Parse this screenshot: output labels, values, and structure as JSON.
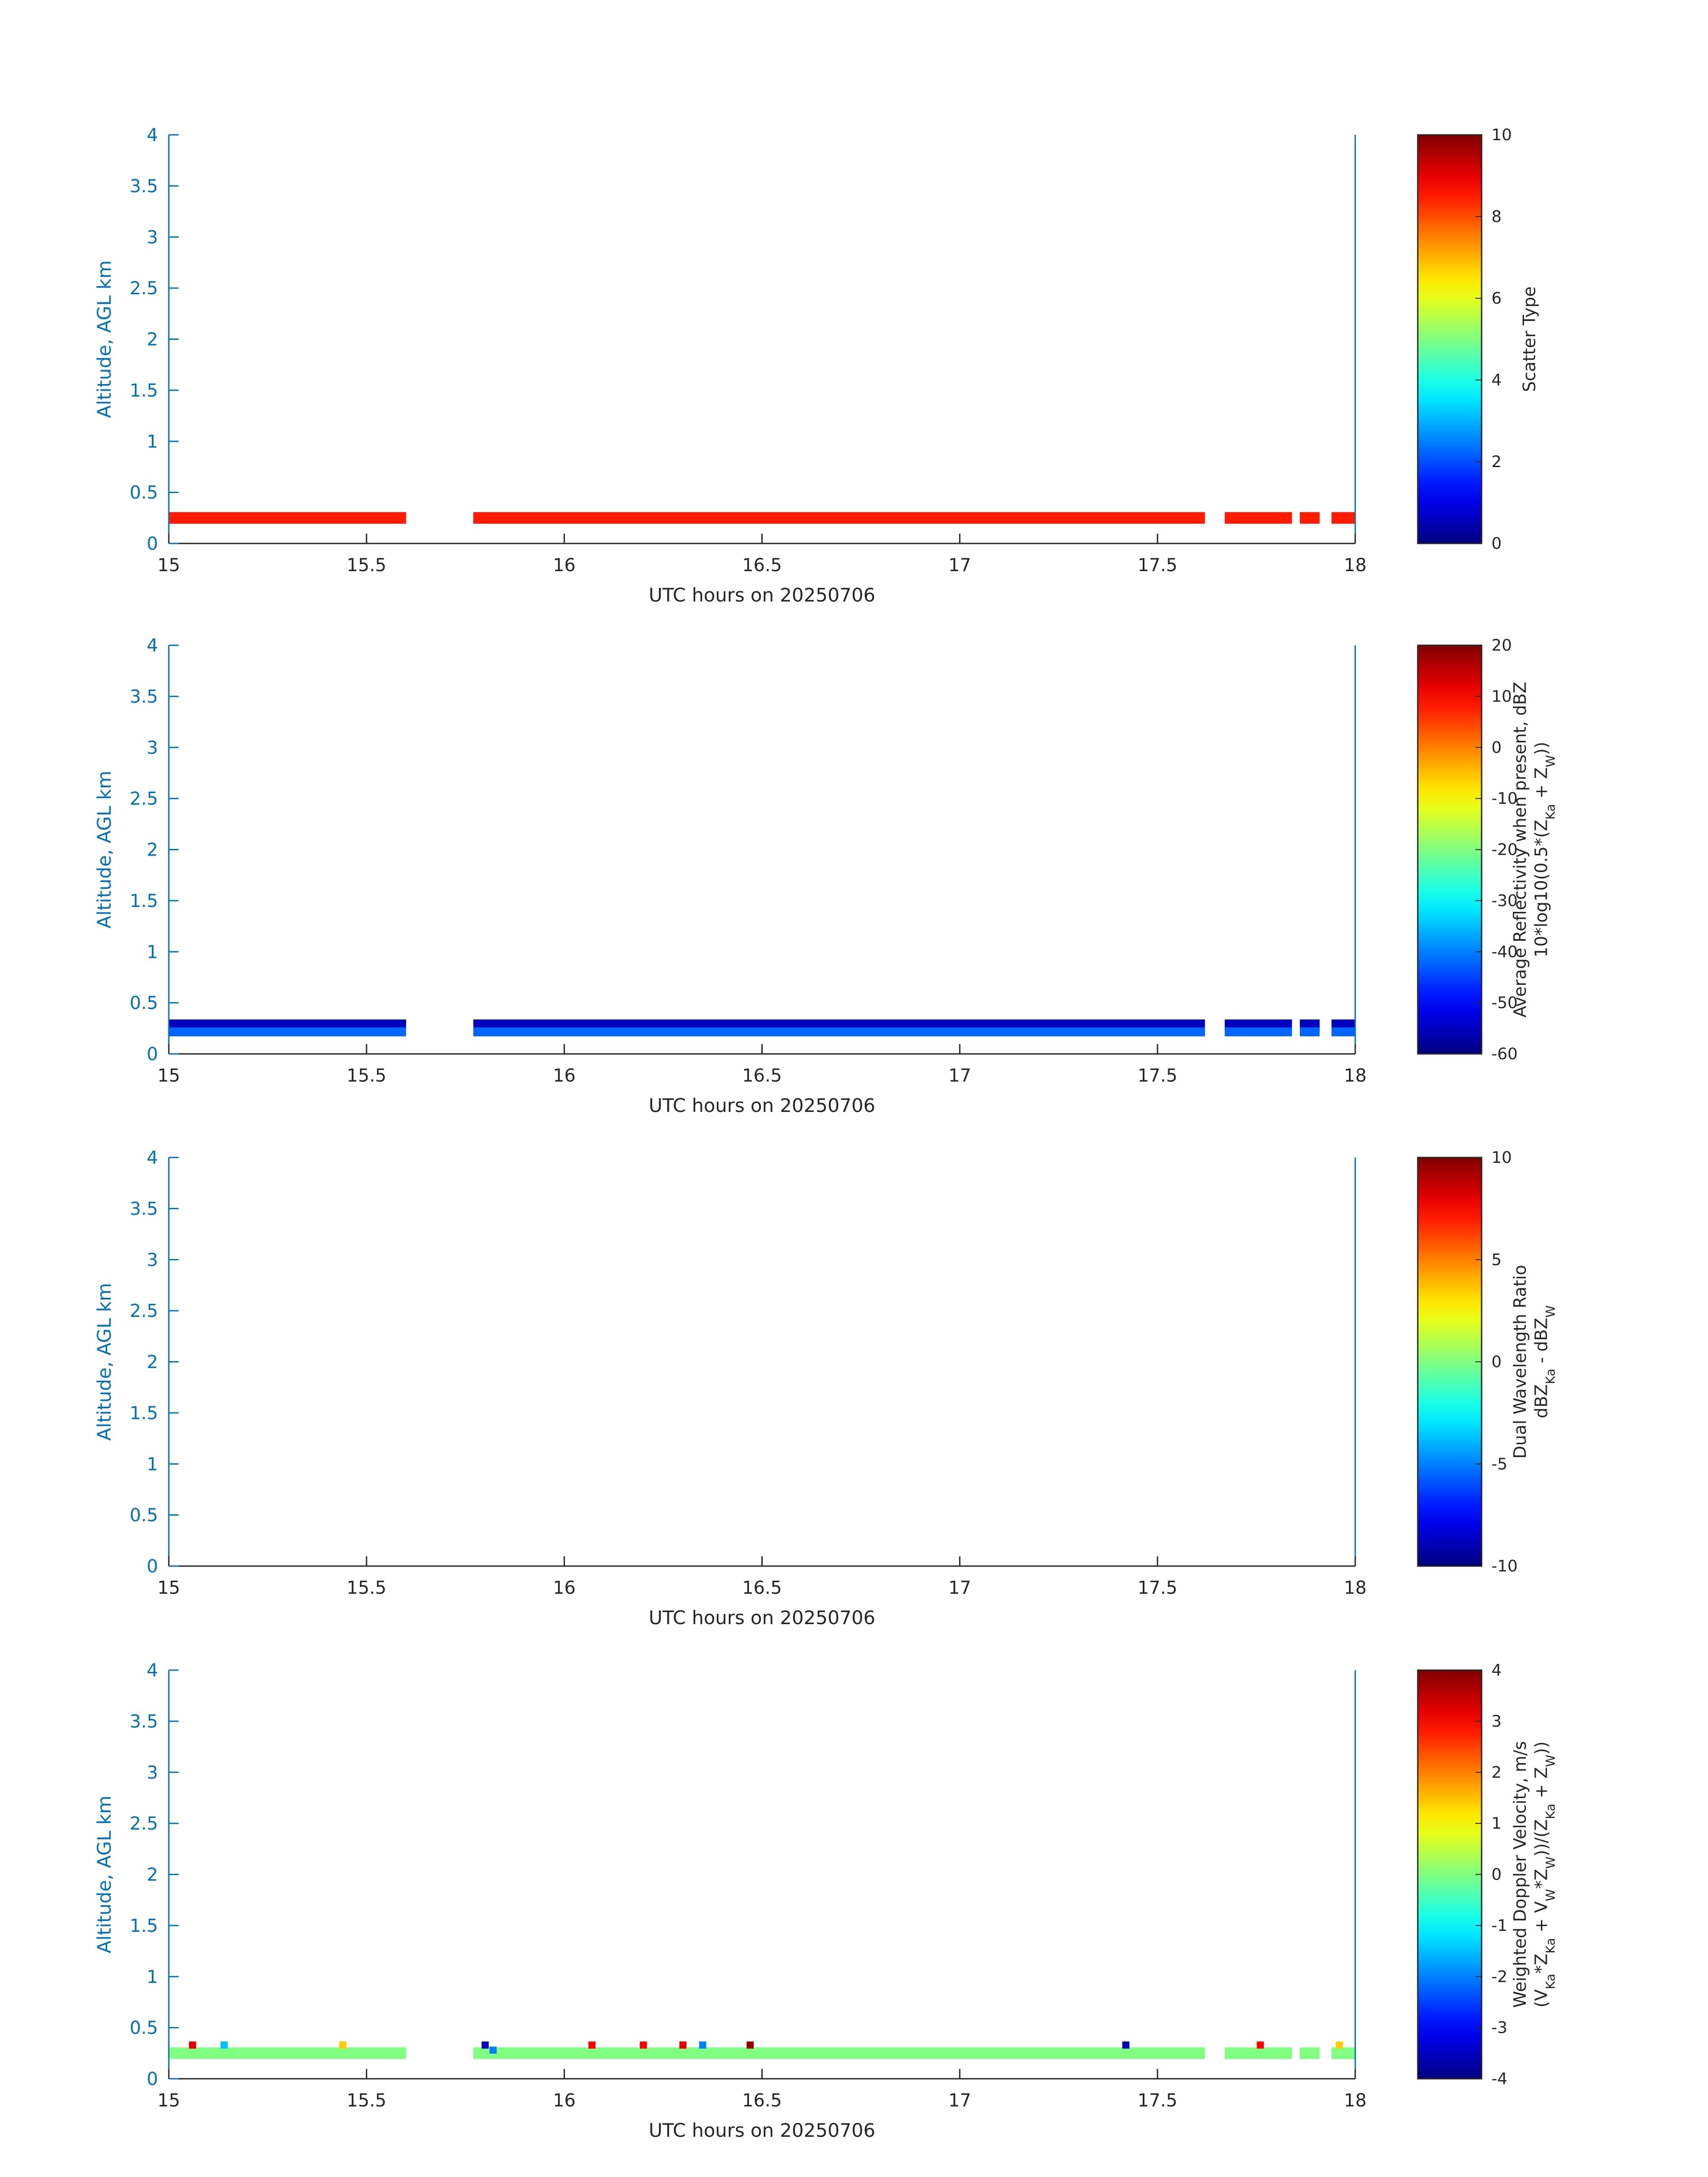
{
  "chart_data": [
    {
      "type": "heatmap",
      "xlabel": "UTC hours on 20250706",
      "ylabel": "Altitude, AGL km",
      "xlim": [
        15,
        18
      ],
      "ylim": [
        0,
        4
      ],
      "xticks": [
        "15",
        "15.5",
        "16",
        "16.5",
        "17",
        "17.5",
        "18"
      ],
      "yticks": [
        "0",
        "0.5",
        "1",
        "1.5",
        "2",
        "2.5",
        "3",
        "3.5",
        "4"
      ],
      "colorbar": {
        "label_lines": [
          "Scatter Type"
        ],
        "range": [
          0,
          10
        ],
        "ticks": [
          "0",
          "2",
          "4",
          "6",
          "8",
          "10"
        ]
      },
      "altitude_km": [
        0.25
      ],
      "segments": [
        [
          15.0,
          15.6
        ],
        [
          15.77,
          17.62
        ],
        [
          17.67,
          17.84
        ],
        [
          17.86,
          17.91
        ],
        [
          17.94,
          18.0
        ]
      ],
      "value": 8.5
    },
    {
      "type": "heatmap",
      "xlabel": "UTC hours on 20250706",
      "ylabel": "Altitude, AGL km",
      "xlim": [
        15,
        18
      ],
      "ylim": [
        0,
        4
      ],
      "xticks": [
        "15",
        "15.5",
        "16",
        "16.5",
        "17",
        "17.5",
        "18"
      ],
      "yticks": [
        "0",
        "0.5",
        "1",
        "1.5",
        "2",
        "2.5",
        "3",
        "3.5",
        "4"
      ],
      "colorbar": {
        "label_lines": [
          "Average Reflectivity when present, dBZ",
          "10*log10(0.5*(Z",
          "Ka",
          " + Z",
          "W",
          "))"
        ],
        "range": [
          -60,
          20
        ],
        "ticks": [
          "-60",
          "-50",
          "-40",
          "-30",
          "-20",
          "-10",
          "0",
          "10",
          "20"
        ]
      },
      "altitude_km": [
        0.22,
        0.28
      ],
      "segments": [
        [
          15.0,
          15.6
        ],
        [
          15.77,
          17.62
        ],
        [
          17.67,
          17.84
        ],
        [
          17.86,
          17.91
        ],
        [
          17.94,
          18.0
        ]
      ],
      "value_low": -42,
      "value_high": -55
    },
    {
      "type": "heatmap",
      "xlabel": "UTC hours on 20250706",
      "ylabel": "Altitude, AGL km",
      "xlim": [
        15,
        18
      ],
      "ylim": [
        0,
        4
      ],
      "xticks": [
        "15",
        "15.5",
        "16",
        "16.5",
        "17",
        "17.5",
        "18"
      ],
      "yticks": [
        "0",
        "0.5",
        "1",
        "1.5",
        "2",
        "2.5",
        "3",
        "3.5",
        "4"
      ],
      "colorbar": {
        "label_lines": [
          "Dual Wavelength Ratio",
          "dBZ",
          "Ka",
          " - dBZ",
          "W"
        ],
        "range": [
          -10,
          10
        ],
        "ticks": [
          "-10",
          "-5",
          "0",
          "5",
          "10"
        ]
      },
      "altitude_km": [],
      "segments": []
    },
    {
      "type": "heatmap",
      "xlabel": "UTC hours on 20250706",
      "ylabel": "Altitude, AGL km",
      "xlim": [
        15,
        18
      ],
      "ylim": [
        0,
        4
      ],
      "xticks": [
        "15",
        "15.5",
        "16",
        "16.5",
        "17",
        "17.5",
        "18"
      ],
      "yticks": [
        "0",
        "0.5",
        "1",
        "1.5",
        "2",
        "2.5",
        "3",
        "3.5",
        "4"
      ],
      "colorbar": {
        "label_lines": [
          "Weighted Doppler Velocity, m/s",
          "(V",
          "Ka",
          "*Z",
          "Ka",
          " + V",
          "W",
          "*Z",
          "W",
          "))/(Z",
          "Ka",
          " + Z",
          "W",
          "))"
        ],
        "range": [
          -4,
          4
        ],
        "ticks": [
          "-4",
          "-3",
          "-2",
          "-1",
          "0",
          "1",
          "2",
          "3",
          "4"
        ]
      },
      "altitude_km": [
        0.25
      ],
      "segments": [
        [
          15.0,
          15.6
        ],
        [
          15.77,
          17.62
        ],
        [
          17.67,
          17.84
        ],
        [
          17.86,
          17.91
        ],
        [
          17.94,
          18.0
        ]
      ],
      "value": 0.0,
      "outliers": [
        {
          "t": 15.06,
          "alt": 0.33,
          "v": 3.2
        },
        {
          "t": 15.14,
          "alt": 0.33,
          "v": -1.5
        },
        {
          "t": 15.44,
          "alt": 0.33,
          "v": 1.4
        },
        {
          "t": 15.8,
          "alt": 0.33,
          "v": -3.5
        },
        {
          "t": 15.82,
          "alt": 0.28,
          "v": -2.0
        },
        {
          "t": 16.07,
          "alt": 0.33,
          "v": 3.0
        },
        {
          "t": 16.2,
          "alt": 0.33,
          "v": 3.0
        },
        {
          "t": 16.3,
          "alt": 0.33,
          "v": 3.2
        },
        {
          "t": 16.35,
          "alt": 0.33,
          "v": -2.0
        },
        {
          "t": 16.47,
          "alt": 0.33,
          "v": 3.8
        },
        {
          "t": 17.42,
          "alt": 0.33,
          "v": -3.6
        },
        {
          "t": 17.76,
          "alt": 0.33,
          "v": 3.0
        },
        {
          "t": 17.96,
          "alt": 0.33,
          "v": 1.4
        }
      ]
    }
  ]
}
